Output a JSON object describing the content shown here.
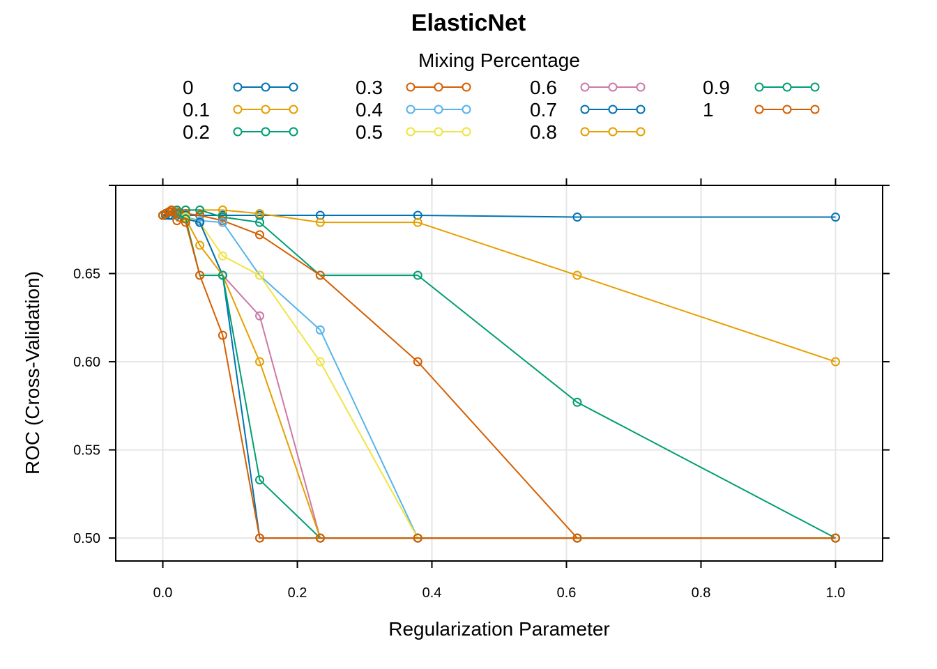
{
  "chart_data": {
    "type": "line",
    "title": "ElasticNet",
    "xlabel": "Regularization Parameter",
    "ylabel": "ROC (Cross-Validation)",
    "legend_title": "Mixing Percentage",
    "legend_position": "top",
    "grid": true,
    "xlim": [
      -0.07,
      1.07
    ],
    "ylim": [
      0.487,
      0.7
    ],
    "x_ticks": [
      0.0,
      0.2,
      0.4,
      0.6,
      0.8,
      1.0
    ],
    "x_tick_labels": [
      "0.0",
      "0.2",
      "0.4",
      "0.6",
      "0.8",
      "1.0"
    ],
    "y_ticks": [
      0.5,
      0.55,
      0.6,
      0.65
    ],
    "y_tick_labels": [
      "0.50",
      "0.55",
      "0.60",
      "0.65"
    ],
    "x": [
      0.0,
      0.004,
      0.009,
      0.013,
      0.021,
      0.034,
      0.055,
      0.089,
      0.144,
      0.234,
      0.379,
      0.616,
      1.0
    ],
    "series": [
      {
        "name": "0",
        "color": "#0072B2",
        "values": [
          0.683,
          0.683,
          0.683,
          0.683,
          0.683,
          0.683,
          0.683,
          0.683,
          0.683,
          0.683,
          0.683,
          0.682,
          0.682
        ]
      },
      {
        "name": "0.1",
        "color": "#E69F00",
        "values": [
          0.683,
          0.684,
          0.685,
          0.685,
          0.685,
          0.686,
          0.686,
          0.686,
          0.684,
          0.679,
          0.679,
          0.649,
          0.6
        ]
      },
      {
        "name": "0.2",
        "color": "#009E73",
        "values": [
          0.683,
          0.684,
          0.685,
          0.686,
          0.686,
          0.686,
          0.686,
          0.682,
          0.679,
          0.649,
          0.649,
          0.577,
          0.5
        ]
      },
      {
        "name": "0.3",
        "color": "#D55E00",
        "values": [
          0.683,
          0.684,
          0.685,
          0.686,
          0.685,
          0.684,
          0.683,
          0.68,
          0.672,
          0.649,
          0.6,
          0.5,
          0.5
        ]
      },
      {
        "name": "0.4",
        "color": "#56B4E9",
        "values": [
          0.683,
          0.684,
          0.685,
          0.685,
          0.684,
          0.682,
          0.68,
          0.679,
          0.649,
          0.618,
          0.5,
          0.5,
          0.5
        ]
      },
      {
        "name": "0.5",
        "color": "#F0E442",
        "values": [
          0.683,
          0.684,
          0.685,
          0.685,
          0.684,
          0.682,
          0.679,
          0.66,
          0.649,
          0.6,
          0.5,
          0.5,
          0.5
        ]
      },
      {
        "name": "0.6",
        "color": "#CC79A7",
        "values": [
          0.683,
          0.684,
          0.685,
          0.685,
          0.684,
          0.681,
          0.679,
          0.649,
          0.626,
          0.5,
          0.5,
          0.5,
          0.5
        ]
      },
      {
        "name": "0.7",
        "color": "#0072B2",
        "values": [
          0.683,
          0.684,
          0.685,
          0.685,
          0.684,
          0.681,
          0.679,
          0.649,
          0.5,
          0.5,
          0.5,
          0.5,
          0.5
        ]
      },
      {
        "name": "0.8",
        "color": "#E69F00",
        "values": [
          0.683,
          0.684,
          0.685,
          0.685,
          0.684,
          0.681,
          0.666,
          0.649,
          0.6,
          0.5,
          0.5,
          0.5,
          0.5
        ]
      },
      {
        "name": "0.9",
        "color": "#009E73",
        "values": [
          0.683,
          0.684,
          0.685,
          0.685,
          0.684,
          0.681,
          0.649,
          0.649,
          0.533,
          0.5,
          0.5,
          0.5,
          0.5
        ]
      },
      {
        "name": "1",
        "color": "#D55E00",
        "values": [
          0.683,
          0.684,
          0.685,
          0.685,
          0.68,
          0.679,
          0.649,
          0.615,
          0.5,
          0.5,
          0.5,
          0.5,
          0.5
        ]
      }
    ]
  }
}
